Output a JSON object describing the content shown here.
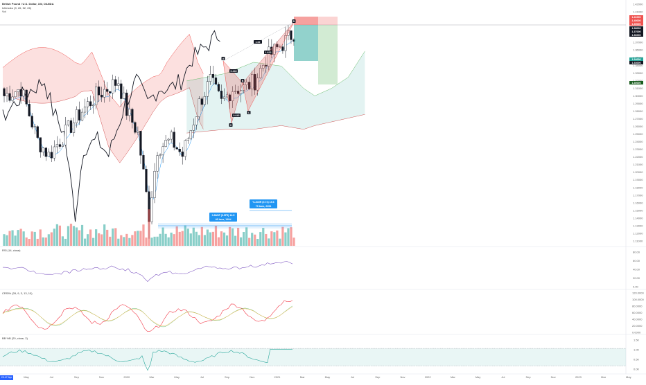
{
  "legend": {
    "title": "British Pound / U.S. Dollar, 1W, OANDA",
    "ichimoku": "Ichimoku (9, 26, 52, 26)",
    "vol": "Vol"
  },
  "panes": {
    "rsi": "RSI (14, close)",
    "stoch": "CRSI% (28, 9, 3, 13, 10)",
    "bb": "BB %B (20, close, 2)"
  },
  "price_axis": [
    "1.42000",
    "1.41000",
    "1.40000",
    "1.39000",
    "1.38000",
    "1.37000",
    "1.36000",
    "1.35000",
    "1.34000",
    "1.33000",
    "1.32000",
    "1.31000",
    "1.30000",
    "1.29000",
    "1.28000",
    "1.27000",
    "1.26000",
    "1.25000",
    "1.24000",
    "1.23000",
    "1.22000",
    "1.21000",
    "1.20000",
    "1.19000",
    "1.18000",
    "1.17000",
    "1.16000",
    "1.15000",
    "1.14000",
    "1.13000",
    "1.12000",
    "1.11000"
  ],
  "price_tags": [
    {
      "text": "1.41000",
      "color": "#ef5350"
    },
    {
      "text": "1.40000",
      "color": "#ef5350"
    },
    {
      "text": "1.39000",
      "color": "#ef5350"
    },
    {
      "text": "1.38000",
      "color": "#131722"
    },
    {
      "text": "1.37000",
      "color": "#131722"
    },
    {
      "text": "1.36000",
      "color": "#131722"
    },
    {
      "text": "1.34000",
      "color": "#26a69a"
    },
    {
      "text": "1.33000",
      "color": "#131722"
    },
    {
      "text": "1.30000",
      "color": "#1b5e20"
    }
  ],
  "rsi_axis": [
    "80.00",
    "60.00",
    "40.00",
    "20.00",
    "0.00"
  ],
  "stoch_axis": [
    "120.0000",
    "100.0000",
    "80.0000",
    "60.0000",
    "40.0000",
    "20.0000",
    "0.0000"
  ],
  "bb_axis": [
    "1.50",
    "1.00",
    "0.50",
    "0.00"
  ],
  "time_axis": [
    "May",
    "Jul",
    "Sep",
    "Nov",
    "2020",
    "Mar",
    "May",
    "Jul",
    "Sep",
    "Nov",
    "2021",
    "Mar",
    "May",
    "Jul",
    "Sep",
    "Nov",
    "2022",
    "Mar",
    "May",
    "Jul",
    "Sep",
    "Nov",
    "2023",
    "Mar",
    "May"
  ],
  "pattern_labels": [
    "X",
    "A",
    "B",
    "C",
    "D"
  ],
  "ratios": [
    "0.443",
    "0.643",
    "1.622",
    "1.62"
  ],
  "boxes": {
    "left_title": "0.88/6F (0.5F5) 14.5",
    "left_sub": "46 bars, 140d",
    "right_title": "%.2b5R (0.72) 15.6",
    "right_sub": "79 bars, 2354"
  },
  "timeframe_badge": "29.47 Apr 7M",
  "colors": {
    "up": "#26a69a",
    "down": "#ef5350",
    "rsi": "#7e57c2",
    "bb": "#26a69a"
  }
}
